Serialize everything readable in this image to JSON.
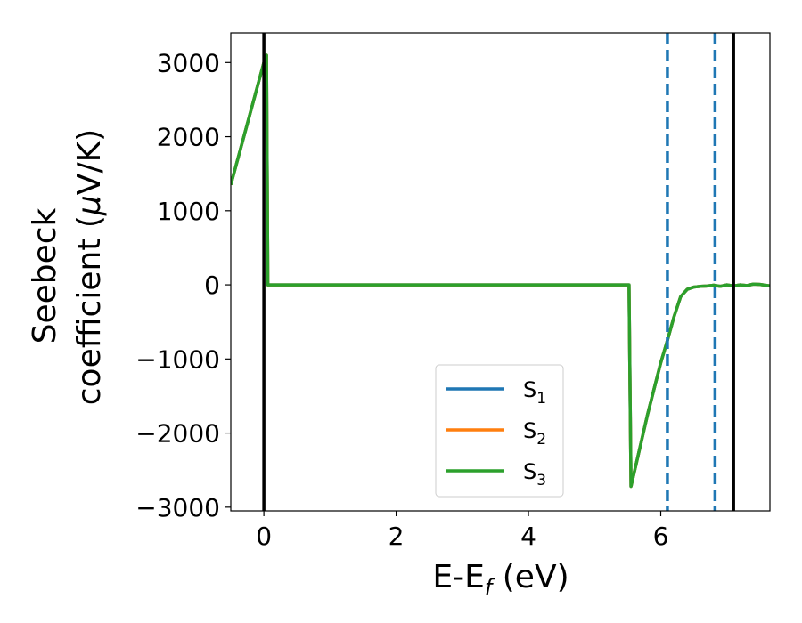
{
  "chart_data": {
    "type": "line",
    "xlabel": "E-E",
    "xlabel_sub": "f",
    "xlabel_unit": " (eV)",
    "ylabel_line1": "Seebeck",
    "ylabel_line2_pre": "coefficient  (",
    "ylabel_mu": "μ",
    "ylabel_line2_post": "V/K)",
    "xlim": [
      -0.5,
      7.65
    ],
    "ylim": [
      -3050,
      3400
    ],
    "x_ticks": [
      0,
      2,
      4,
      6
    ],
    "x_tick_labels": [
      "0",
      "2",
      "4",
      "6"
    ],
    "y_ticks": [
      3000,
      2000,
      1000,
      0,
      -1000,
      -2000,
      -3000
    ],
    "y_tick_labels": [
      "3000",
      "2000",
      "1000",
      "0",
      "−1000",
      "−2000",
      "−3000"
    ],
    "grid": false,
    "legend_position": "lower-center",
    "vertical_lines": [
      {
        "x": 0.0,
        "style": "solid",
        "color": "#000000"
      },
      {
        "x": 6.1,
        "style": "dashed",
        "color": "#1f77b4"
      },
      {
        "x": 6.82,
        "style": "dashed",
        "color": "#1f77b4"
      },
      {
        "x": 7.1,
        "style": "solid",
        "color": "#000000"
      }
    ],
    "series": [
      {
        "name": "S",
        "name_sub": "1",
        "color": "#1f77b4",
        "x": [
          -0.5,
          0.0,
          0.04,
          0.06,
          5.5,
          5.52,
          5.55,
          5.8,
          6.0,
          6.1,
          6.2,
          6.3,
          6.4,
          6.5,
          6.6,
          6.7,
          6.8,
          6.9,
          7.0,
          7.1,
          7.2,
          7.3,
          7.4,
          7.5,
          7.65
        ],
        "y": [
          1350,
          3000,
          3100,
          0,
          0,
          0,
          -2720,
          -1750,
          -1050,
          -750,
          -430,
          -160,
          -60,
          -30,
          -20,
          -15,
          -5,
          -20,
          0,
          -15,
          0,
          -10,
          10,
          5,
          -15
        ]
      },
      {
        "name": "S",
        "name_sub": "2",
        "color": "#ff7f0e",
        "x": [
          -0.5,
          0.0,
          0.04,
          0.06,
          5.5,
          5.52,
          5.55,
          5.8,
          6.0,
          6.1,
          6.2,
          6.3,
          6.4,
          6.5,
          6.6,
          6.7,
          6.8,
          6.9,
          7.0,
          7.1,
          7.2,
          7.3,
          7.4,
          7.5,
          7.65
        ],
        "y": [
          1350,
          3000,
          3100,
          0,
          0,
          0,
          -2720,
          -1750,
          -1050,
          -750,
          -430,
          -160,
          -60,
          -30,
          -20,
          -15,
          -5,
          -20,
          0,
          -15,
          0,
          -10,
          10,
          5,
          -15
        ]
      },
      {
        "name": "S",
        "name_sub": "3",
        "color": "#2ca02c",
        "x": [
          -0.5,
          0.0,
          0.04,
          0.06,
          5.5,
          5.52,
          5.55,
          5.8,
          6.0,
          6.1,
          6.2,
          6.3,
          6.4,
          6.5,
          6.6,
          6.7,
          6.8,
          6.9,
          7.0,
          7.1,
          7.2,
          7.3,
          7.4,
          7.5,
          7.65
        ],
        "y": [
          1350,
          3000,
          3100,
          0,
          0,
          0,
          -2720,
          -1750,
          -1050,
          -750,
          -430,
          -160,
          -60,
          -30,
          -20,
          -15,
          -5,
          -20,
          0,
          -15,
          0,
          -10,
          10,
          5,
          -15
        ]
      }
    ]
  }
}
